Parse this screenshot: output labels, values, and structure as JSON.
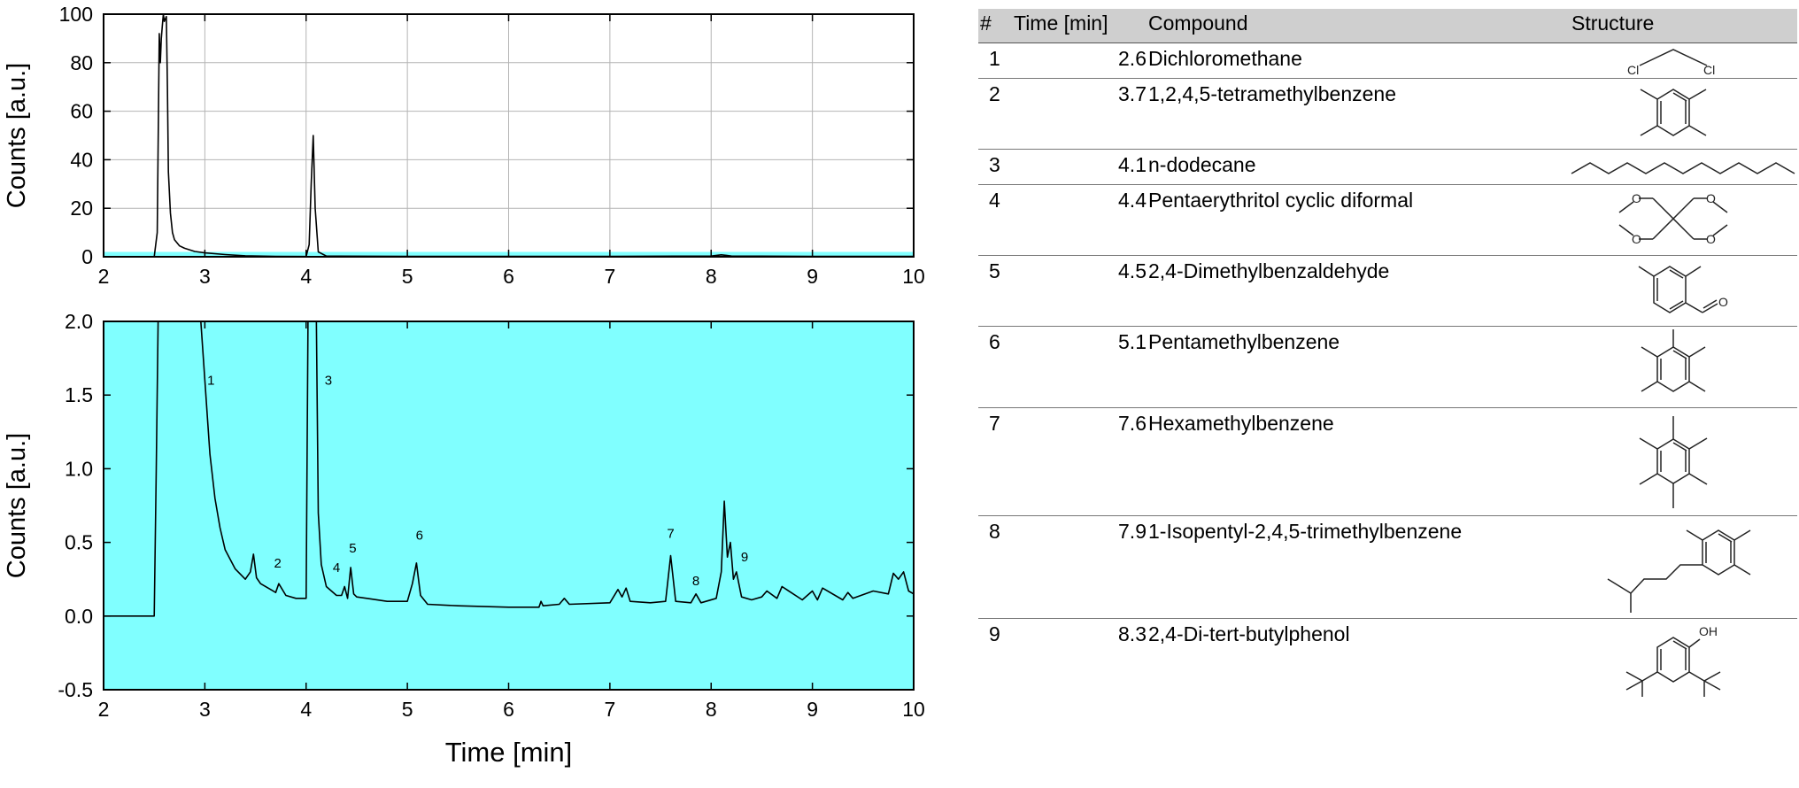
{
  "chart_data": [
    {
      "type": "line",
      "panel": "top",
      "title": "",
      "xlabel": "",
      "ylabel": "Counts [a.u.]",
      "xlim": [
        2,
        10
      ],
      "ylim": [
        0,
        100
      ],
      "xticks": [
        "2",
        "3",
        "4",
        "5",
        "6",
        "7",
        "8",
        "9",
        "10"
      ],
      "yticks": [
        "0",
        "20",
        "40",
        "60",
        "80",
        "100"
      ],
      "grid": true,
      "highlight_band": {
        "ymin": 0,
        "ymax": 2.0,
        "color": "#80ffff"
      },
      "series": [
        {
          "x": [
            2.0,
            2.5,
            2.53,
            2.55,
            2.56,
            2.57,
            2.58,
            2.59,
            2.6,
            2.62,
            2.63,
            2.64,
            2.66,
            2.68,
            2.7,
            2.75,
            2.8,
            2.9,
            3.0,
            3.2,
            3.4,
            3.7,
            4.0,
            4.03,
            4.05,
            4.07,
            4.09,
            4.12,
            4.2,
            5.0,
            6.0,
            7.0,
            8.0,
            8.1,
            8.15,
            8.2,
            9.0,
            10.0
          ],
          "y": [
            0,
            0,
            10,
            92,
            80,
            90,
            95,
            100,
            97,
            99,
            70,
            35,
            18,
            10,
            7,
            4.5,
            3.5,
            2.2,
            1.6,
            0.9,
            0.4,
            0.2,
            0.1,
            5,
            30,
            50,
            20,
            2,
            0.3,
            0.2,
            0.15,
            0.2,
            0.3,
            0.8,
            0.6,
            0.3,
            0.2,
            0.2
          ],
          "color": "#000000"
        }
      ]
    },
    {
      "type": "line",
      "panel": "bottom",
      "title": "",
      "xlabel": "Time [min]",
      "ylabel": "Counts [a.u.]",
      "xlim": [
        2,
        10
      ],
      "ylim": [
        -0.5,
        2.0
      ],
      "xticks": [
        "2",
        "3",
        "4",
        "5",
        "6",
        "7",
        "8",
        "9",
        "10"
      ],
      "yticks": [
        "-0.5",
        "0.0",
        "0.5",
        "1.0",
        "1.5",
        "2.0"
      ],
      "grid": false,
      "background": "#80ffff",
      "series": [
        {
          "x": [
            2.0,
            2.5,
            2.52,
            2.54,
            2.56,
            2.95,
            3.0,
            3.05,
            3.1,
            3.15,
            3.2,
            3.3,
            3.4,
            3.45,
            3.48,
            3.51,
            3.55,
            3.65,
            3.7,
            3.73,
            3.8,
            3.9,
            4.0,
            4.02,
            4.04,
            4.1,
            4.12,
            4.15,
            4.2,
            4.3,
            4.35,
            4.38,
            4.41,
            4.44,
            4.47,
            4.5,
            4.6,
            4.8,
            5.0,
            5.05,
            5.09,
            5.13,
            5.2,
            5.5,
            6.0,
            6.3,
            6.32,
            6.34,
            6.5,
            6.55,
            6.6,
            7.0,
            7.08,
            7.12,
            7.16,
            7.2,
            7.4,
            7.55,
            7.6,
            7.65,
            7.8,
            7.85,
            7.9,
            8.05,
            8.1,
            8.13,
            8.16,
            8.19,
            8.22,
            8.25,
            8.3,
            8.4,
            8.5,
            8.55,
            8.65,
            8.7,
            8.9,
            9.0,
            9.05,
            9.1,
            9.3,
            9.35,
            9.4,
            9.6,
            9.75,
            9.8,
            9.85,
            9.9,
            9.95,
            10.0
          ],
          "y": [
            0.0,
            0.0,
            1.0,
            2.1,
            2.1,
            2.1,
            1.6,
            1.1,
            0.8,
            0.6,
            0.45,
            0.32,
            0.25,
            0.3,
            0.42,
            0.26,
            0.22,
            0.18,
            0.16,
            0.22,
            0.14,
            0.12,
            0.12,
            2.1,
            2.1,
            2.1,
            0.7,
            0.35,
            0.2,
            0.14,
            0.14,
            0.2,
            0.12,
            0.33,
            0.15,
            0.13,
            0.12,
            0.1,
            0.1,
            0.22,
            0.36,
            0.14,
            0.08,
            0.07,
            0.06,
            0.06,
            0.1,
            0.07,
            0.08,
            0.12,
            0.08,
            0.09,
            0.18,
            0.13,
            0.19,
            0.1,
            0.09,
            0.1,
            0.41,
            0.1,
            0.09,
            0.15,
            0.09,
            0.12,
            0.3,
            0.78,
            0.4,
            0.5,
            0.25,
            0.3,
            0.13,
            0.11,
            0.13,
            0.17,
            0.12,
            0.2,
            0.11,
            0.17,
            0.11,
            0.19,
            0.11,
            0.16,
            0.12,
            0.17,
            0.15,
            0.29,
            0.25,
            0.3,
            0.17,
            0.15
          ],
          "color": "#000000"
        }
      ],
      "annotations": [
        {
          "text": "1",
          "x": 3.06,
          "y": 1.57
        },
        {
          "text": "2",
          "x": 3.72,
          "y": 0.33
        },
        {
          "text": "3",
          "x": 4.22,
          "y": 1.57
        },
        {
          "text": "4",
          "x": 4.3,
          "y": 0.3
        },
        {
          "text": "5",
          "x": 4.46,
          "y": 0.43
        },
        {
          "text": "6",
          "x": 5.12,
          "y": 0.52
        },
        {
          "text": "7",
          "x": 7.6,
          "y": 0.53
        },
        {
          "text": "8",
          "x": 7.85,
          "y": 0.21
        },
        {
          "text": "9",
          "x": 8.33,
          "y": 0.37
        }
      ]
    }
  ],
  "table": {
    "headers": [
      "#",
      "Time [min]",
      "Compound",
      "Structure"
    ],
    "rows": [
      {
        "num": "1",
        "time": "2.6",
        "compound": "Dichloromethane",
        "structure": "dichloromethane"
      },
      {
        "num": "2",
        "time": "3.7",
        "compound": "1,2,4,5-tetramethylbenzene",
        "structure": "tetramethylbenzene"
      },
      {
        "num": "3",
        "time": "4.1",
        "compound": "n-dodecane",
        "structure": "dodecane"
      },
      {
        "num": "4",
        "time": "4.4",
        "compound": "Pentaerythritol cyclic diformal",
        "structure": "diformal"
      },
      {
        "num": "5",
        "time": "4.5",
        "compound": "2,4-Dimethylbenzaldehyde",
        "structure": "dimethylbenzaldehyde"
      },
      {
        "num": "6",
        "time": "5.1",
        "compound": "Pentamethylbenzene",
        "structure": "pentamethylbenzene"
      },
      {
        "num": "7",
        "time": "7.6",
        "compound": "Hexamethylbenzene",
        "structure": "hexamethylbenzene"
      },
      {
        "num": "8",
        "time": "7.9",
        "compound": "1-Isopentyl-2,4,5-trimethylbenzene",
        "structure": "isopentyltrimethylbenzene"
      },
      {
        "num": "9",
        "time": "8.3",
        "compound": "2,4-Di-tert-butylphenol",
        "structure": "ditertbutylphenol"
      }
    ],
    "atom_labels": {
      "cl": "Cl",
      "o": "O",
      "oh": "OH"
    }
  }
}
